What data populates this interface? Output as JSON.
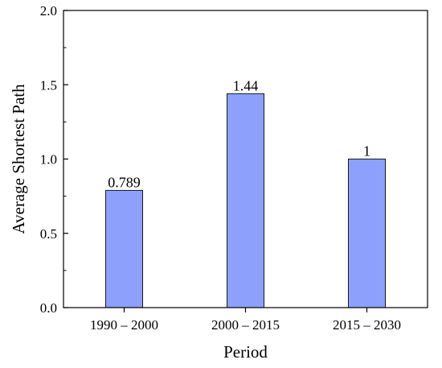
{
  "chart_data": {
    "type": "bar",
    "title": "",
    "xlabel": "Period",
    "ylabel": "Average Shortest Path",
    "categories": [
      "1990 – 2000",
      "2000 – 2015",
      "2015 – 2030"
    ],
    "values": [
      0.789,
      1.44,
      1
    ],
    "data_labels": [
      "0.789",
      "1.44",
      "1"
    ],
    "ylim": [
      0,
      2.0
    ],
    "yticks": [
      0.0,
      0.5,
      1.0,
      1.5,
      2.0
    ],
    "ytick_labels": [
      "0.0",
      "0.5",
      "1.0",
      "1.5",
      "2.0"
    ],
    "grid": false,
    "legend": "none",
    "colors": {
      "bar_fill": "#8da0fb",
      "bar_stroke": "#1a1a1a",
      "axis": "#000000"
    }
  }
}
